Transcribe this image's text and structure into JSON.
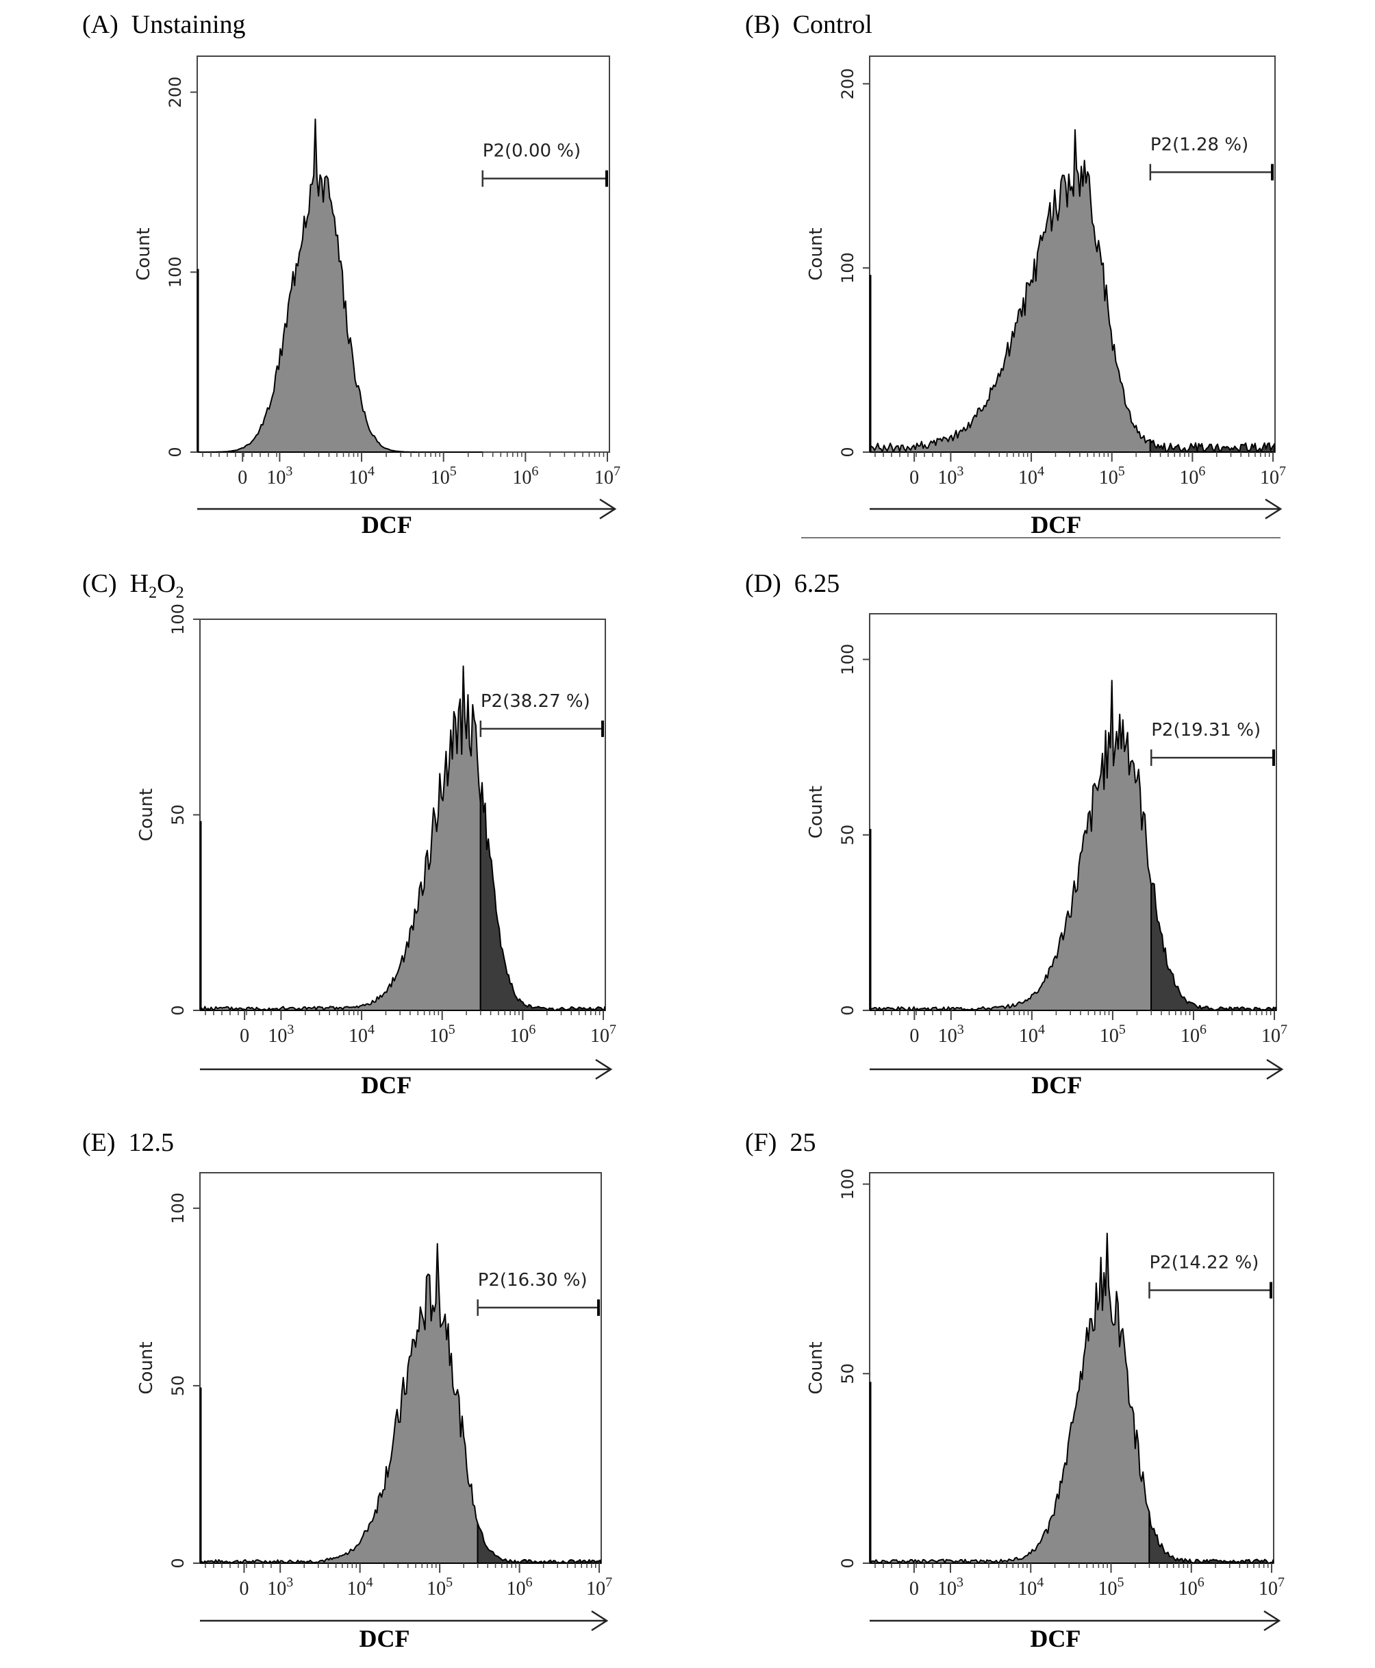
{
  "chart_data": [
    {
      "type": "area",
      "panel": "(A)",
      "title": "Unstaining",
      "xlabel": "DCF",
      "ylabel": "Count",
      "x_scale": "log",
      "x_ticks": [
        "0",
        "10^3",
        "10^4",
        "10^5",
        "10^6",
        "10^7"
      ],
      "ylim": [
        0,
        220
      ],
      "y_ticks": [
        0,
        100,
        200
      ],
      "gate": {
        "name": "P2",
        "label": "P2(0.00 %)",
        "percent": 0.0,
        "start": "3x10^5",
        "end": "10^7"
      },
      "peak": {
        "mode": "3x10^3",
        "max_count": 185
      },
      "fill_color": "#8a8a8a",
      "gated_fill_color": "#3c3c3c"
    },
    {
      "type": "area",
      "panel": "(B)",
      "title": "Control",
      "xlabel": "DCF",
      "ylabel": "Count",
      "x_scale": "log",
      "x_ticks": [
        "0",
        "10^3",
        "10^4",
        "10^5",
        "10^6",
        "10^7"
      ],
      "ylim": [
        0,
        215
      ],
      "y_ticks": [
        0,
        100,
        200
      ],
      "gate": {
        "name": "P2",
        "label": "P2(1.28 %)",
        "percent": 1.28,
        "start": "3x10^5",
        "end": "10^7"
      },
      "peak": {
        "mode": "4x10^4",
        "max_count": 175
      },
      "fill_color": "#8a8a8a",
      "gated_fill_color": "#3c3c3c"
    },
    {
      "type": "area",
      "panel": "(C)",
      "title": "H2O2",
      "xlabel": "DCF",
      "ylabel": "Count",
      "x_scale": "log",
      "x_ticks": [
        "0",
        "10^3",
        "10^4",
        "10^5",
        "10^6",
        "10^7"
      ],
      "ylim": [
        0,
        100
      ],
      "y_ticks": [
        0,
        50,
        100
      ],
      "gate": {
        "name": "P2",
        "label": "P2(38.27 %)",
        "percent": 38.27,
        "start": "3x10^5",
        "end": "10^7"
      },
      "peak": {
        "mode": "2x10^5",
        "max_count": 88
      },
      "fill_color": "#8a8a8a",
      "gated_fill_color": "#3c3c3c"
    },
    {
      "type": "area",
      "panel": "(D)",
      "title": "6.25",
      "xlabel": "DCF",
      "ylabel": "Count",
      "x_scale": "log",
      "x_ticks": [
        "0",
        "10^3",
        "10^4",
        "10^5",
        "10^6",
        "10^7"
      ],
      "ylim": [
        0,
        113
      ],
      "y_ticks": [
        0,
        50,
        100
      ],
      "gate": {
        "name": "P2",
        "label": "P2(19.31 %)",
        "percent": 19.31,
        "start": "3x10^5",
        "end": "10^7"
      },
      "peak": {
        "mode": "1.3x10^5",
        "max_count": 94
      },
      "fill_color": "#8a8a8a",
      "gated_fill_color": "#3c3c3c"
    },
    {
      "type": "area",
      "panel": "(E)",
      "title": "12.5",
      "xlabel": "DCF",
      "ylabel": "Count",
      "x_scale": "log",
      "x_ticks": [
        "0",
        "10^3",
        "10^4",
        "10^5",
        "10^6",
        "10^7"
      ],
      "ylim": [
        0,
        110
      ],
      "y_ticks": [
        0,
        50,
        100
      ],
      "gate": {
        "name": "P2",
        "label": "P2(16.30 %)",
        "percent": 16.3,
        "start": "3x10^5",
        "end": "10^7"
      },
      "peak": {
        "mode": "9x10^4",
        "max_count": 90
      },
      "fill_color": "#8a8a8a",
      "gated_fill_color": "#3c3c3c"
    },
    {
      "type": "area",
      "panel": "(F)",
      "title": "25",
      "xlabel": "DCF",
      "ylabel": "Count",
      "x_scale": "log",
      "x_ticks": [
        "0",
        "10^3",
        "10^4",
        "10^5",
        "10^6",
        "10^7"
      ],
      "ylim": [
        0,
        103
      ],
      "y_ticks": [
        0,
        50,
        100
      ],
      "gate": {
        "name": "P2",
        "label": "P2(14.22 %)",
        "percent": 14.22,
        "start": "3x10^5",
        "end": "10^7"
      },
      "peak": {
        "mode": "9x10^4",
        "max_count": 87
      },
      "fill_color": "#8a8a8a",
      "gated_fill_color": "#3c3c3c"
    }
  ]
}
